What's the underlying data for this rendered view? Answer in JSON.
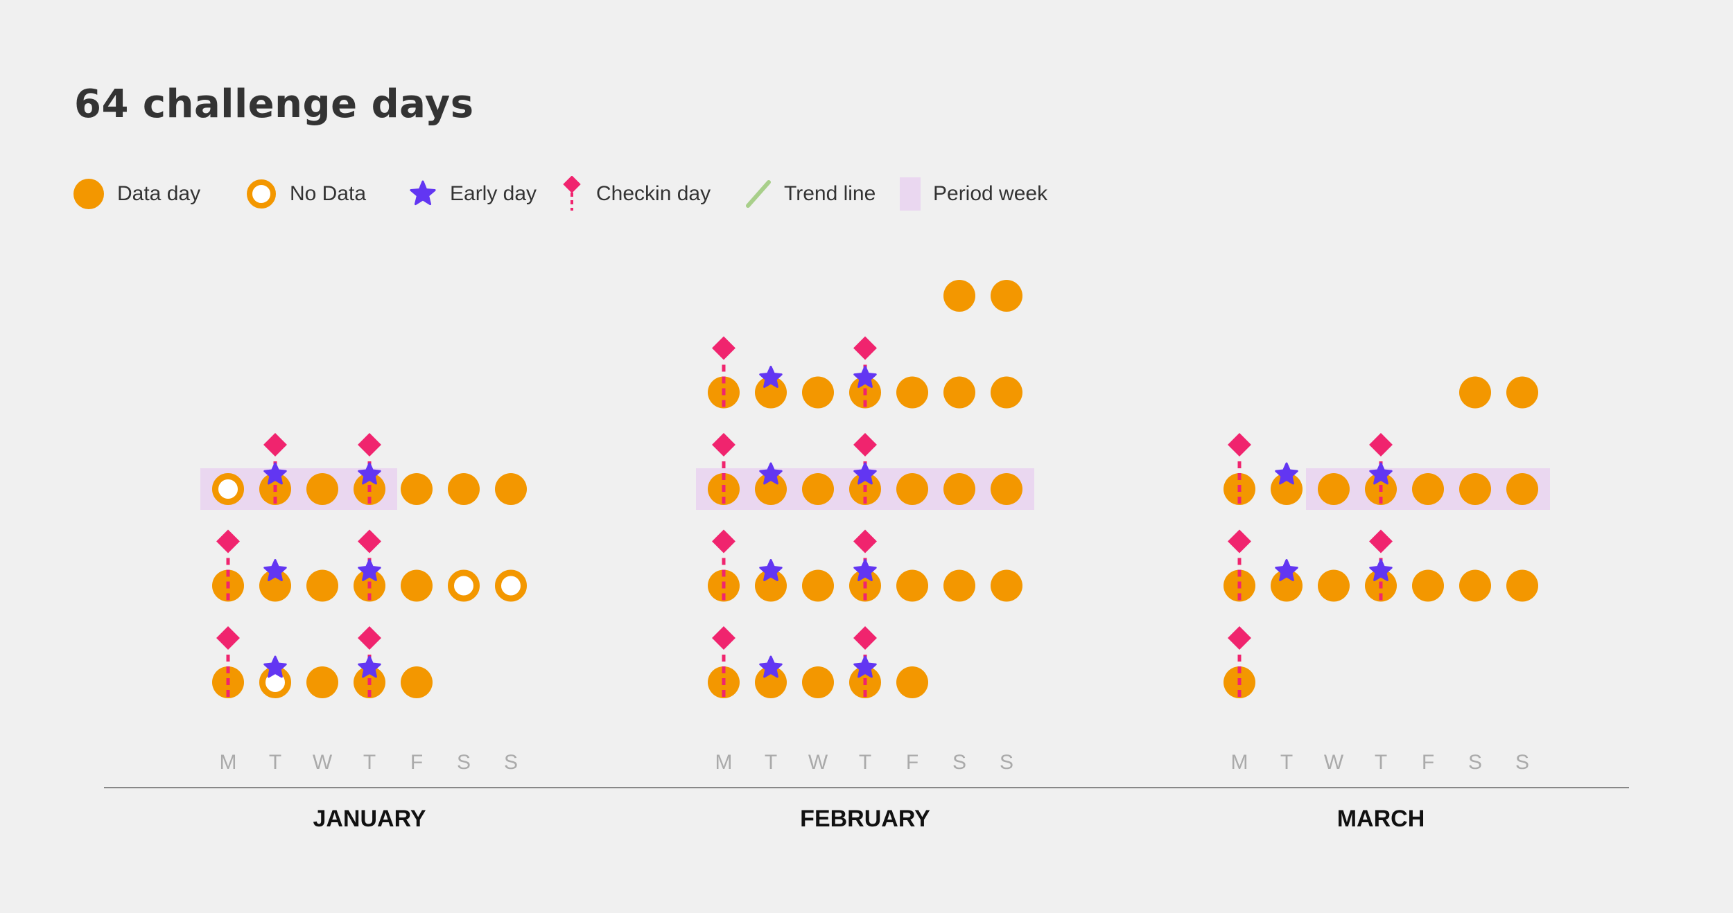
{
  "title": "64 challenge days",
  "legend": {
    "data_day": "Data day",
    "no_data": "No Data",
    "early_day": "Early day",
    "checkin_day": "Checkin day",
    "trend_line": "Trend line",
    "period_week": "Period week"
  },
  "colors": {
    "data_day": "#f39700",
    "early_day": "#6236f2",
    "checkin_day": "#f0246e",
    "trend_line": "#a8cf8a",
    "period_week": "#ead7f0",
    "axis": "#888888"
  },
  "chart_data": {
    "type": "calendar-dot",
    "weekdays": [
      "M",
      "T",
      "W",
      "T",
      "F",
      "S",
      "S"
    ],
    "months": [
      {
        "name": "JANUARY",
        "weeks": [
          {
            "days": [
              "data",
              "nodata",
              "data",
              "data",
              "data",
              null,
              null
            ],
            "early": [
              1,
              3
            ],
            "checkin": [
              0,
              3
            ],
            "period": false
          },
          {
            "days": [
              "data",
              "data",
              "data",
              "data",
              "data",
              "nodata",
              "nodata"
            ],
            "early": [
              1,
              3
            ],
            "checkin": [
              0,
              3
            ],
            "period": false
          },
          {
            "days": [
              "nodata",
              "data",
              "data",
              "data",
              "data",
              "data",
              "data"
            ],
            "early": [
              1,
              3
            ],
            "checkin": [
              1,
              3
            ],
            "period": true,
            "period_days": [
              0,
              3
            ]
          }
        ]
      },
      {
        "name": "FEBRUARY",
        "weeks": [
          {
            "days": [
              "data",
              "data",
              "data",
              "data",
              "data",
              null,
              null
            ],
            "early": [
              1,
              3
            ],
            "checkin": [
              0,
              3
            ],
            "period": false
          },
          {
            "days": [
              "data",
              "data",
              "data",
              "data",
              "data",
              "data",
              "data"
            ],
            "early": [
              1,
              3
            ],
            "checkin": [
              0,
              3
            ],
            "period": false
          },
          {
            "days": [
              "data",
              "data",
              "data",
              "data",
              "data",
              "data",
              "data"
            ],
            "early": [
              1,
              3
            ],
            "checkin": [
              0,
              3
            ],
            "period": true,
            "period_days": [
              0,
              6
            ]
          },
          {
            "days": [
              "data",
              "data",
              "data",
              "data",
              "data",
              "data",
              "data"
            ],
            "early": [
              1,
              3
            ],
            "checkin": [
              0,
              3
            ],
            "period": false
          },
          {
            "days": [
              null,
              null,
              null,
              null,
              null,
              "data",
              "data"
            ],
            "early": [],
            "checkin": [],
            "period": false
          }
        ]
      },
      {
        "name": "MARCH",
        "weeks": [
          {
            "days": [
              "data",
              null,
              null,
              null,
              null,
              null,
              null
            ],
            "early": [],
            "checkin": [
              0
            ],
            "period": false
          },
          {
            "days": [
              "data",
              "data",
              "data",
              "data",
              "data",
              "data",
              "data"
            ],
            "early": [
              1,
              3
            ],
            "checkin": [
              0,
              3
            ],
            "period": false
          },
          {
            "days": [
              "data",
              "data",
              "data",
              "data",
              "data",
              "data",
              "data"
            ],
            "early": [
              1,
              3
            ],
            "checkin": [
              0,
              3
            ],
            "period": true,
            "period_days": [
              2,
              6
            ]
          },
          {
            "days": [
              null,
              null,
              null,
              null,
              null,
              "data",
              "data"
            ],
            "early": [],
            "checkin": [],
            "period": false
          }
        ]
      }
    ]
  }
}
